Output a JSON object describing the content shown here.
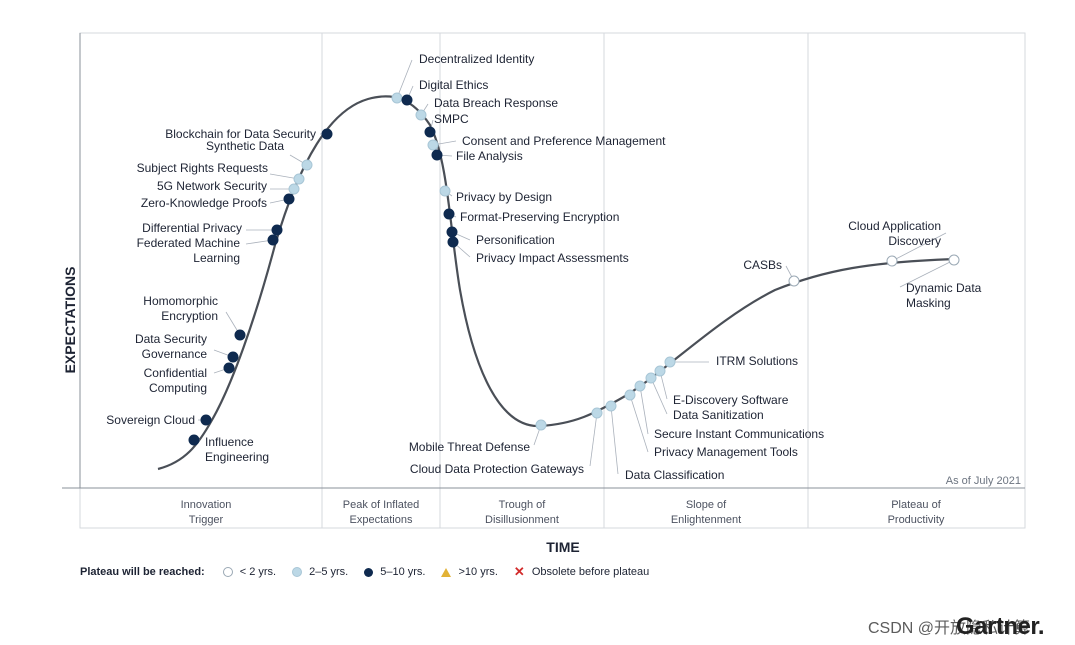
{
  "diagram": {
    "y_axis_label": "EXPECTATIONS",
    "x_axis_label": "TIME",
    "as_of": "As of July 2021",
    "phases": [
      "Innovation Trigger",
      "Peak of Inflated Expectations",
      "Trough of Disillusionment",
      "Slope of Enlightenment",
      "Plateau of Productivity"
    ]
  },
  "legend": {
    "title": "Plateau will be reached:",
    "items": [
      {
        "label": "< 2 yrs.",
        "symbol": "white-circle"
      },
      {
        "label": "2–5 yrs.",
        "symbol": "light-blue-circle"
      },
      {
        "label": "5–10 yrs.",
        "symbol": "dark-blue-circle"
      },
      {
        "label": ">10 yrs.",
        "symbol": "yellow-triangle"
      },
      {
        "label": "Obsolete before plateau",
        "symbol": "red-cross"
      }
    ]
  },
  "colors": {
    "curve": "#4a4f57",
    "white": "#ffffff",
    "light": "#bcd8e6",
    "dark": "#0f2a4f",
    "triangle": "#e2b236",
    "cross": "#d22b2b",
    "grid": "#d6d9de"
  },
  "technologies": [
    {
      "name": "Influence Engineering",
      "category": "5-10"
    },
    {
      "name": "Sovereign Cloud",
      "category": "5-10"
    },
    {
      "name": "Confidential Computing",
      "category": "5-10"
    },
    {
      "name": "Data Security Governance",
      "category": "5-10"
    },
    {
      "name": "Homomorphic Encryption",
      "category": "5-10"
    },
    {
      "name": "Federated Machine Learning",
      "category": "5-10"
    },
    {
      "name": "Differential Privacy",
      "category": "5-10"
    },
    {
      "name": "Zero-Knowledge Proofs",
      "category": "5-10"
    },
    {
      "name": "5G Network Security",
      "category": "2-5"
    },
    {
      "name": "Subject Rights Requests",
      "category": "2-5"
    },
    {
      "name": "Synthetic Data",
      "category": "2-5"
    },
    {
      "name": "Blockchain for Data Security",
      "category": "5-10"
    },
    {
      "name": "Decentralized Identity",
      "category": "2-5"
    },
    {
      "name": "Digital Ethics",
      "category": "5-10"
    },
    {
      "name": "Data Breach Response",
      "category": "2-5"
    },
    {
      "name": "SMPC",
      "category": "5-10"
    },
    {
      "name": "Consent and Preference Management",
      "category": "2-5"
    },
    {
      "name": "File Analysis",
      "category": "5-10"
    },
    {
      "name": "Privacy by Design",
      "category": "2-5"
    },
    {
      "name": "Format-Preserving Encryption",
      "category": "5-10"
    },
    {
      "name": "Personification",
      "category": "5-10"
    },
    {
      "name": "Privacy Impact Assessments",
      "category": "5-10"
    },
    {
      "name": "Mobile Threat Defense",
      "category": "2-5"
    },
    {
      "name": "Cloud Data Protection Gateways",
      "category": "2-5"
    },
    {
      "name": "Data Classification",
      "category": "2-5"
    },
    {
      "name": "Privacy Management Tools",
      "category": "2-5"
    },
    {
      "name": "Secure Instant Communications",
      "category": "2-5"
    },
    {
      "name": "Data Sanitization",
      "category": "2-5"
    },
    {
      "name": "E-Discovery Software",
      "category": "2-5"
    },
    {
      "name": "ITRM Solutions",
      "category": "2-5"
    },
    {
      "name": "CASBs",
      "category": "<2"
    },
    {
      "name": "Cloud Application Discovery",
      "category": "<2"
    },
    {
      "name": "Dynamic Data Masking",
      "category": "<2"
    }
  ],
  "watermark": "CSDN @开放隐私计算",
  "brand": "Gartner."
}
